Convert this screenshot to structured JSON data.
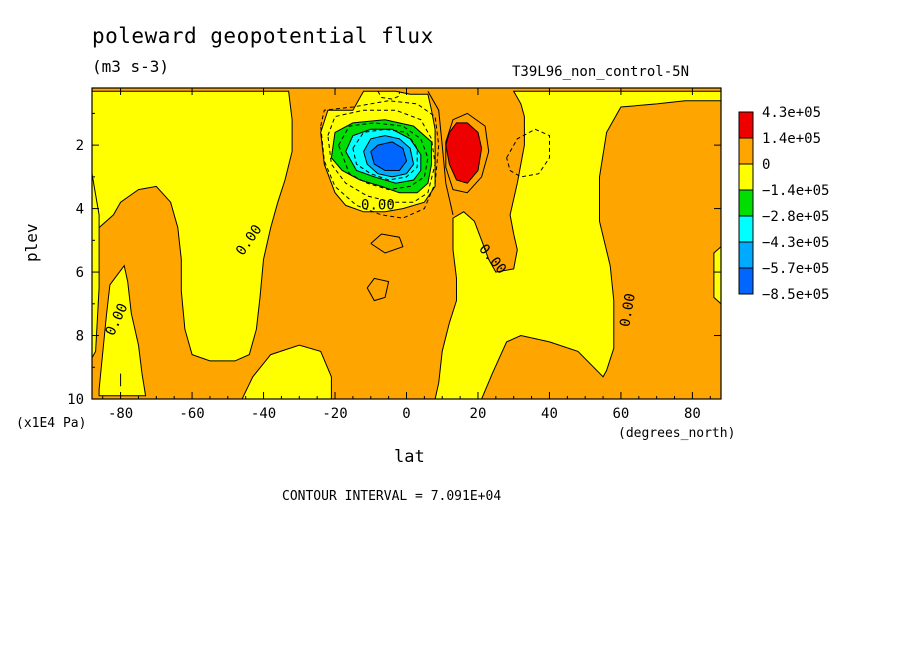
{
  "header": {
    "title": "poleward geopotential flux",
    "units": "(m3 s-3)",
    "run_name": "T39L96_non_control-5N"
  },
  "footer": {
    "contour_interval": "CONTOUR INTERVAL = 7.091E+04"
  },
  "chart_data": {
    "type": "heatmap",
    "xlabel": "lat",
    "xunits": "(degrees_north)",
    "ylabel": "plev",
    "yunits": "(x1E4 Pa)",
    "xlim": [
      -88,
      88
    ],
    "ylim": [
      10,
      0.2
    ],
    "xticks": [
      -80,
      -60,
      -40,
      -20,
      0,
      20,
      40,
      60,
      80
    ],
    "yticks": [
      2,
      4,
      6,
      8,
      10
    ],
    "colors": {
      "c_max": "#ee0000",
      "c_pos": "#ffa500",
      "c_neg1": "#ffff00",
      "c_neg2": "#00dd00",
      "c_neg3": "#00ffff",
      "c_neg4": "#00aaff",
      "c_min": "#0066ff"
    },
    "legend": {
      "placement": "right",
      "levels": [
        "4.3e+05",
        "1.4e+05",
        "0",
        "−1.4e+05",
        "−2.8e+05",
        "−4.3e+05",
        "−5.7e+05",
        "−8.5e+05"
      ],
      "colors": [
        "#ee0000",
        "#ffa500",
        "#ffff00",
        "#00dd00",
        "#00ffff",
        "#00aaff",
        "#0066ff"
      ]
    },
    "contour_labels": [
      {
        "text": "0.00",
        "lat": -8,
        "plev": 3.9,
        "angle": 0
      },
      {
        "text": "0.00",
        "lat": -44,
        "plev": 5.0,
        "angle": -55
      },
      {
        "text": "0.00",
        "lat": -81,
        "plev": 7.5,
        "angle": -65
      },
      {
        "text": "0.00",
        "lat": 24,
        "plev": 5.6,
        "angle": 50
      },
      {
        "text": "0.00",
        "lat": 62,
        "plev": 7.2,
        "angle": -80
      }
    ],
    "regions": [
      {
        "level": "c_neg1",
        "points": [
          [
            -86,
            4.6
          ],
          [
            -82,
            4.2
          ],
          [
            -80,
            3.8
          ],
          [
            -75,
            3.4
          ],
          [
            -70,
            3.3
          ],
          [
            -66,
            3.8
          ],
          [
            -64,
            4.6
          ],
          [
            -63,
            5.6
          ],
          [
            -63,
            6.6
          ],
          [
            -62,
            7.8
          ],
          [
            -60,
            8.6
          ],
          [
            -55,
            8.8
          ],
          [
            -48,
            8.8
          ],
          [
            -44,
            8.6
          ],
          [
            -42,
            7.8
          ],
          [
            -41,
            6.8
          ],
          [
            -40,
            5.6
          ],
          [
            -38,
            4.6
          ],
          [
            -36,
            3.8
          ],
          [
            -34,
            3.1
          ],
          [
            -32,
            2.2
          ],
          [
            -32,
            1.2
          ],
          [
            -33,
            0.3
          ],
          [
            -88,
            0.3
          ],
          [
            -88,
            3.5
          ]
        ]
      },
      {
        "level": "c_neg1",
        "points": [
          [
            -88,
            2.9
          ],
          [
            -86,
            4.2
          ],
          [
            -86,
            6.5
          ],
          [
            -87,
            8.5
          ],
          [
            -88,
            8.7
          ]
        ]
      },
      {
        "level": "c_neg1",
        "points": [
          [
            -86,
            9.7
          ],
          [
            -84,
            7.4
          ],
          [
            -83,
            6.4
          ],
          [
            -79,
            5.8
          ],
          [
            -78,
            6.3
          ],
          [
            -77,
            7.3
          ],
          [
            -75,
            8.3
          ],
          [
            -74,
            9.2
          ],
          [
            -73,
            9.9
          ],
          [
            -86,
            9.9
          ]
        ]
      },
      {
        "level": "c_neg1",
        "points": [
          [
            -46,
            10
          ],
          [
            -43,
            9.3
          ],
          [
            -38,
            8.6
          ],
          [
            -30,
            8.3
          ],
          [
            -24,
            8.5
          ],
          [
            -21,
            9.3
          ],
          [
            -21,
            10
          ]
        ]
      },
      {
        "level": "c_neg1",
        "points": [
          [
            -12,
            0.3
          ],
          [
            -13,
            0.5
          ],
          [
            -15,
            0.9
          ],
          [
            -22,
            0.9
          ],
          [
            -24,
            1.6
          ],
          [
            -23,
            2.6
          ],
          [
            -20,
            3.5
          ],
          [
            -17,
            3.9
          ],
          [
            -12,
            4.1
          ],
          [
            -6,
            4.1
          ],
          [
            -1,
            4.0
          ],
          [
            5,
            3.8
          ],
          [
            8,
            3.3
          ],
          [
            8,
            2.5
          ],
          [
            8,
            1.5
          ],
          [
            7,
            0.9
          ],
          [
            6,
            0.4
          ],
          [
            1,
            0.4
          ],
          [
            -3,
            0.3
          ]
        ]
      },
      {
        "level": "c_neg1",
        "points": [
          [
            8,
            10
          ],
          [
            9,
            9.5
          ],
          [
            10,
            8.5
          ],
          [
            12,
            7.6
          ],
          [
            14,
            6.9
          ],
          [
            14,
            6.2
          ],
          [
            13,
            5.3
          ],
          [
            13,
            4.3
          ],
          [
            16,
            4.1
          ],
          [
            19,
            4.4
          ],
          [
            21,
            5.0
          ],
          [
            23,
            5.6
          ],
          [
            25,
            6.0
          ],
          [
            30,
            5.9
          ],
          [
            31,
            5.3
          ],
          [
            30,
            4.8
          ],
          [
            29,
            4.2
          ],
          [
            31,
            3.2
          ],
          [
            33,
            2.0
          ],
          [
            33,
            1.1
          ],
          [
            32,
            0.7
          ],
          [
            30,
            0.3
          ],
          [
            88,
            0.3
          ],
          [
            88,
            0.6
          ],
          [
            78,
            0.6
          ],
          [
            70,
            0.7
          ],
          [
            60,
            0.8
          ],
          [
            56,
            1.6
          ],
          [
            54,
            3.0
          ],
          [
            54,
            4.4
          ],
          [
            57,
            5.8
          ],
          [
            58,
            6.9
          ],
          [
            58,
            8.4
          ],
          [
            56,
            9.1
          ],
          [
            55,
            9.3
          ],
          [
            48,
            8.5
          ],
          [
            40,
            8.2
          ],
          [
            32,
            8.0
          ],
          [
            28,
            8.2
          ],
          [
            24,
            9.2
          ],
          [
            21,
            10
          ]
        ]
      },
      {
        "level": "c_neg1",
        "points": [
          [
            88,
            5.2
          ],
          [
            86,
            5.4
          ],
          [
            86,
            6.8
          ],
          [
            88,
            7.0
          ]
        ]
      },
      {
        "level": "c_neg2",
        "points": [
          [
            -21,
            2.4
          ],
          [
            -20,
            1.6
          ],
          [
            -15,
            1.3
          ],
          [
            -6,
            1.2
          ],
          [
            2,
            1.4
          ],
          [
            7,
            1.9
          ],
          [
            7,
            2.6
          ],
          [
            6,
            3.2
          ],
          [
            3,
            3.5
          ],
          [
            -2,
            3.5
          ],
          [
            -7,
            3.3
          ],
          [
            -13,
            3.1
          ],
          [
            -18,
            2.8
          ]
        ]
      },
      {
        "level": "c_neg3",
        "points": [
          [
            -17,
            2.2
          ],
          [
            -15,
            1.7
          ],
          [
            -10,
            1.5
          ],
          [
            -4,
            1.5
          ],
          [
            1,
            1.8
          ],
          [
            4,
            2.3
          ],
          [
            4,
            2.8
          ],
          [
            2,
            3.1
          ],
          [
            -3,
            3.2
          ],
          [
            -9,
            3.0
          ],
          [
            -14,
            2.8
          ]
        ]
      },
      {
        "level": "c_neg4",
        "points": [
          [
            -12,
            2.2
          ],
          [
            -10,
            1.8
          ],
          [
            -6,
            1.7
          ],
          [
            -2,
            1.8
          ],
          [
            1,
            2.1
          ],
          [
            2,
            2.6
          ],
          [
            0,
            2.9
          ],
          [
            -4,
            3.0
          ],
          [
            -8,
            2.9
          ],
          [
            -11,
            2.6
          ]
        ]
      },
      {
        "level": "c_min",
        "points": [
          [
            -10,
            2.2
          ],
          [
            -8,
            2.0
          ],
          [
            -4,
            1.9
          ],
          [
            -1,
            2.1
          ],
          [
            0,
            2.5
          ],
          [
            -2,
            2.8
          ],
          [
            -6,
            2.8
          ],
          [
            -9,
            2.6
          ]
        ]
      },
      {
        "level": "c_max",
        "points": [
          [
            12,
            1.6
          ],
          [
            14,
            1.3
          ],
          [
            17,
            1.3
          ],
          [
            20,
            1.6
          ],
          [
            21,
            2.1
          ],
          [
            20,
            2.8
          ],
          [
            17,
            3.2
          ],
          [
            14,
            3.1
          ],
          [
            12,
            2.6
          ],
          [
            11,
            2.0
          ]
        ]
      }
    ],
    "contour_lines": [
      {
        "style": "dash",
        "points": [
          [
            -24,
            1.4
          ],
          [
            -23,
            0.9
          ],
          [
            -15,
            0.8
          ],
          [
            -5,
            0.6
          ],
          [
            3,
            0.7
          ],
          [
            8,
            1.1
          ],
          [
            9,
            2.0
          ],
          [
            8,
            3.2
          ],
          [
            5,
            4.0
          ],
          [
            -1,
            4.3
          ],
          [
            -7,
            4.2
          ],
          [
            -14,
            3.9
          ],
          [
            -20,
            3.3
          ],
          [
            -23,
            2.5
          ],
          [
            -24,
            1.4
          ]
        ]
      },
      {
        "style": "dash",
        "points": [
          [
            -22,
            1.7
          ],
          [
            -20,
            1.1
          ],
          [
            -12,
            0.9
          ],
          [
            -3,
            0.9
          ],
          [
            4,
            1.2
          ],
          [
            7,
            1.8
          ],
          [
            8,
            2.6
          ],
          [
            6,
            3.5
          ],
          [
            2,
            3.8
          ],
          [
            -4,
            3.8
          ],
          [
            -11,
            3.6
          ],
          [
            -17,
            3.2
          ],
          [
            -21,
            2.6
          ],
          [
            -22,
            1.7
          ]
        ]
      },
      {
        "style": "dash",
        "points": [
          [
            -19,
            2.0
          ],
          [
            -16,
            1.4
          ],
          [
            -9,
            1.3
          ],
          [
            -1,
            1.4
          ],
          [
            4,
            1.8
          ],
          [
            6,
            2.4
          ],
          [
            5,
            3.0
          ],
          [
            1,
            3.3
          ],
          [
            -5,
            3.4
          ],
          [
            -11,
            3.2
          ],
          [
            -16,
            2.9
          ],
          [
            -19,
            2.0
          ]
        ]
      },
      {
        "style": "dash",
        "points": [
          [
            -15,
            2.1
          ],
          [
            -12,
            1.6
          ],
          [
            -6,
            1.5
          ],
          [
            0,
            1.6
          ],
          [
            3,
            2.1
          ],
          [
            3,
            2.7
          ],
          [
            0,
            3.0
          ],
          [
            -5,
            3.1
          ],
          [
            -10,
            2.9
          ],
          [
            -14,
            2.6
          ],
          [
            -15,
            2.1
          ]
        ]
      },
      {
        "style": "dash",
        "points": [
          [
            -8,
            0.3
          ],
          [
            -7,
            0.5
          ],
          [
            -4,
            0.55
          ],
          [
            -2,
            0.45
          ],
          [
            -2,
            0.3
          ]
        ]
      },
      {
        "style": "dash",
        "points": [
          [
            28,
            2.4
          ],
          [
            31,
            1.8
          ],
          [
            36,
            1.5
          ],
          [
            40,
            1.7
          ],
          [
            40,
            2.4
          ],
          [
            37,
            2.9
          ],
          [
            32,
            3.0
          ],
          [
            29,
            2.8
          ],
          [
            28,
            2.4
          ]
        ]
      },
      {
        "style": "solid",
        "points": [
          [
            11,
            1.9
          ],
          [
            13,
            1.2
          ],
          [
            17,
            1.0
          ],
          [
            22,
            1.4
          ],
          [
            23,
            2.2
          ],
          [
            21,
            3.0
          ],
          [
            17,
            3.5
          ],
          [
            13,
            3.4
          ],
          [
            11,
            2.7
          ],
          [
            11,
            1.9
          ]
        ]
      },
      {
        "style": "solid",
        "points": [
          [
            6,
            0.3
          ],
          [
            9,
            0.9
          ],
          [
            10,
            2.0
          ],
          [
            11,
            3.2
          ],
          [
            13,
            4.2
          ]
        ]
      },
      {
        "style": "solid",
        "points": [
          [
            -10,
            5.1
          ],
          [
            -7,
            4.8
          ],
          [
            -2,
            4.9
          ],
          [
            -1,
            5.2
          ],
          [
            -6,
            5.4
          ],
          [
            -10,
            5.1
          ]
        ]
      },
      {
        "style": "solid",
        "points": [
          [
            -11,
            6.5
          ],
          [
            -9,
            6.2
          ],
          [
            -5,
            6.3
          ],
          [
            -6,
            6.8
          ],
          [
            -9,
            6.9
          ],
          [
            -11,
            6.5
          ]
        ]
      },
      {
        "style": "solid",
        "points": [
          [
            -80,
            9.2
          ],
          [
            -80,
            9.6
          ]
        ]
      }
    ]
  }
}
